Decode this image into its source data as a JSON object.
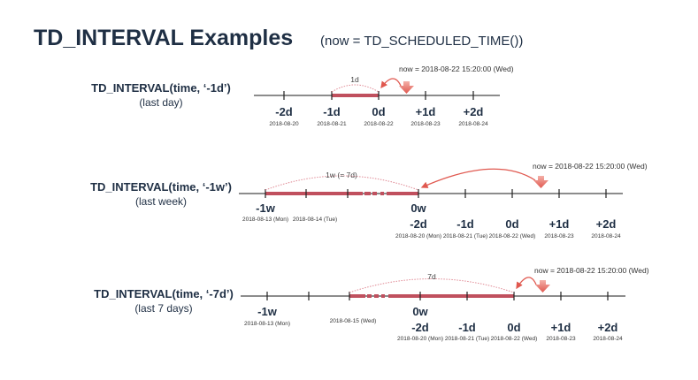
{
  "title": {
    "main": "TD_INTERVAL Examples",
    "sub": "(now = TD_SCHEDULED_TIME())"
  },
  "colors": {
    "text": "#1f2f44",
    "bar": "#c0505e",
    "now_arrow": "#e0584f"
  },
  "examples": [
    {
      "call": "TD_INTERVAL(time, ‘-1d’)",
      "desc": "(last day)",
      "now": "now = 2018-08-22 15:20:00 (Wed)",
      "span": "1d",
      "ticks": [
        {
          "label": "-2d",
          "date": "2018-08-20"
        },
        {
          "label": "-1d",
          "date": "2018-08-21"
        },
        {
          "label": "0d",
          "date": "2018-08-22"
        },
        {
          "label": "+1d",
          "date": "2018-08-23"
        },
        {
          "label": "+2d",
          "date": "2018-08-24"
        }
      ]
    },
    {
      "call": "TD_INTERVAL(time, ‘-1w’)",
      "desc": "(last week)",
      "now": "now = 2018-08-22 15:20:00 (Wed)",
      "span": "1w (= 7d)",
      "week_ticks": [
        {
          "label": "-1w",
          "date": "2018-08-13 (Mon)"
        },
        {
          "date": "2018-08-14 (Tue)"
        },
        {
          "label": "0w"
        }
      ],
      "ticks": [
        {
          "label": "-2d",
          "date": "2018-08-20 (Mon)"
        },
        {
          "label": "-1d",
          "date": "2018-08-21 (Tue)"
        },
        {
          "label": "0d",
          "date": "2018-08-22 (Wed)"
        },
        {
          "label": "+1d",
          "date": "2018-08-23"
        },
        {
          "label": "+2d",
          "date": "2018-08-24"
        }
      ]
    },
    {
      "call": "TD_INTERVAL(time, ‘-7d’)",
      "desc": "(last 7 days)",
      "now": "now = 2018-08-22 15:20:00 (Wed)",
      "span": "7d",
      "week_ticks": [
        {
          "label": "-1w",
          "date": "2018-08-13 (Mon)"
        },
        {
          "date": "2018-08-15 (Wed)"
        },
        {
          "label": "0w"
        }
      ],
      "ticks": [
        {
          "label": "-2d",
          "date": "2018-08-20 (Mon)"
        },
        {
          "label": "-1d",
          "date": "2018-08-21 (Tue)"
        },
        {
          "label": "0d",
          "date": "2018-08-22 (Wed)"
        },
        {
          "label": "+1d",
          "date": "2018-08-23"
        },
        {
          "label": "+2d",
          "date": "2018-08-24"
        }
      ]
    }
  ]
}
